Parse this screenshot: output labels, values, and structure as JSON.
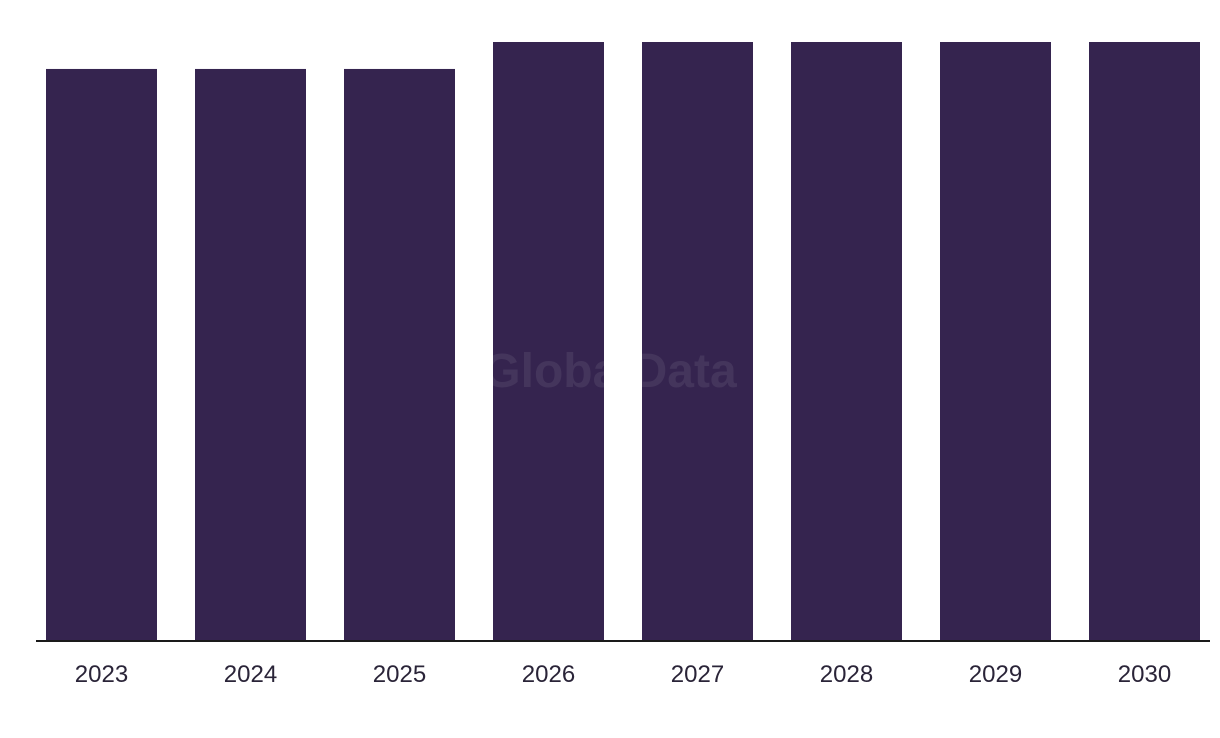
{
  "chart_data": {
    "type": "bar",
    "categories": [
      "2023",
      "2024",
      "2025",
      "2026",
      "2027",
      "2028",
      "2029",
      "2030"
    ],
    "values": [
      0.955,
      0.955,
      0.955,
      1.0,
      1.0,
      1.0,
      1.0,
      1.0
    ],
    "ylim": [
      0,
      1
    ],
    "grid": false,
    "legend": "none",
    "title": "",
    "xlabel": "",
    "ylabel": "",
    "bar_color": "#35244f",
    "axis_color": "#1a1a1a"
  },
  "watermark": "GlobalData"
}
